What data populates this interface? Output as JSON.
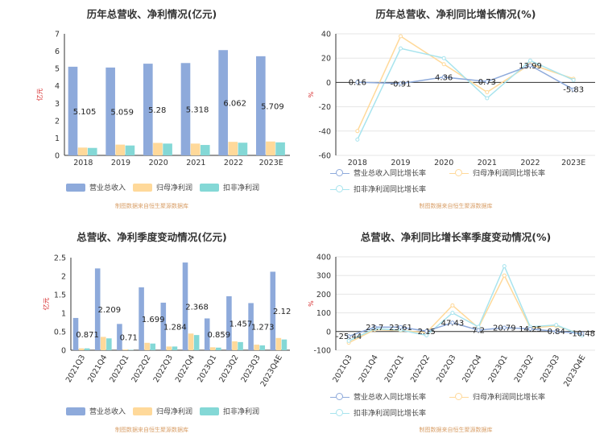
{
  "source_note": "制图数据来自恒生聚源数据库",
  "chart_data": [
    {
      "type": "bar",
      "title": "历年总营收、净利情况(亿元)",
      "ylabel": "亿元",
      "ylim": [
        0,
        7
      ],
      "yticks": [
        0,
        1,
        2,
        3,
        4,
        5,
        6,
        7
      ],
      "categories": [
        "2018",
        "2019",
        "2020",
        "2021",
        "2022",
        "2023E"
      ],
      "series": [
        {
          "name": "营业总收入",
          "color": "#8eaadb",
          "values": [
            5.105,
            5.059,
            5.28,
            5.318,
            6.062,
            5.709
          ]
        },
        {
          "name": "归母净利润",
          "color": "#ffd99a",
          "values": [
            0.45,
            0.62,
            0.72,
            0.68,
            0.78,
            0.8
          ]
        },
        {
          "name": "扣非净利润",
          "color": "#84d8d6",
          "values": [
            0.43,
            0.57,
            0.68,
            0.6,
            0.73,
            0.75
          ]
        }
      ],
      "data_labels": [
        "5.105",
        "5.059",
        "5.28",
        "5.318",
        "6.062",
        "5.709"
      ]
    },
    {
      "type": "line",
      "title": "历年总营收、净利同比增长情况(%)",
      "ylabel": "%",
      "ylim": [
        -60,
        40
      ],
      "yticks": [
        -60,
        -40,
        -20,
        0,
        20,
        40
      ],
      "categories": [
        "2018",
        "2019",
        "2020",
        "2021",
        "2022",
        "2023E"
      ],
      "series": [
        {
          "name": "营业总收入同比增长率",
          "color": "#8eaadb",
          "values": [
            0.16,
            -0.91,
            4.36,
            0.73,
            13.99,
            -5.83
          ]
        },
        {
          "name": "归母净利润同比增长率",
          "color": "#ffd99a",
          "values": [
            -40,
            38,
            15,
            -8,
            15,
            3
          ]
        },
        {
          "name": "扣非净利润同比增长率",
          "color": "#a8e4ee",
          "values": [
            -47,
            28,
            20,
            -13,
            18,
            2
          ]
        }
      ],
      "data_labels": [
        "0.16",
        "-0.91",
        "4.36",
        "0.73",
        "13.99",
        "-5.83"
      ]
    },
    {
      "type": "bar",
      "title": "总营收、净利季度变动情况(亿元)",
      "ylabel": "亿元",
      "ylim": [
        0,
        2.5
      ],
      "yticks": [
        0,
        0.5,
        1,
        1.5,
        2,
        2.5
      ],
      "categories": [
        "2021Q3",
        "2021Q4",
        "2022Q1",
        "2022Q2",
        "2022Q3",
        "2022Q4",
        "2023Q1",
        "2023Q2",
        "2023Q3",
        "2023Q4E"
      ],
      "series": [
        {
          "name": "营业总收入",
          "color": "#8eaadb",
          "values": [
            0.871,
            2.209,
            0.71,
            1.699,
            1.284,
            2.368,
            0.859,
            1.457,
            1.273,
            2.12
          ]
        },
        {
          "name": "归母净利润",
          "color": "#ffd99a",
          "values": [
            0.05,
            0.36,
            0.02,
            0.2,
            0.1,
            0.45,
            0.08,
            0.24,
            0.15,
            0.33
          ]
        },
        {
          "name": "扣非净利润",
          "color": "#84d8d6",
          "values": [
            0.05,
            0.32,
            0.01,
            0.18,
            0.1,
            0.41,
            0.07,
            0.22,
            0.13,
            0.29
          ]
        }
      ],
      "data_labels": [
        "0.871",
        "2.209",
        "0.71",
        "1.699",
        "1.284",
        "2.368",
        "0.859",
        "1.457",
        "1.273",
        "2.12"
      ]
    },
    {
      "type": "line",
      "title": "总营收、净利同比增长率季度变动情况(%)",
      "ylabel": "%",
      "ylim": [
        -100,
        400
      ],
      "yticks": [
        -100,
        0,
        100,
        200,
        300,
        400
      ],
      "categories": [
        "2021Q3",
        "2021Q4",
        "2022Q1",
        "2022Q2",
        "2022Q3",
        "2022Q4",
        "2023Q1",
        "2023Q2",
        "2023Q3",
        "2023Q4E"
      ],
      "series": [
        {
          "name": "营业总收入同比增长率",
          "color": "#8eaadb",
          "values": [
            -25.44,
            23.7,
            23.61,
            2.15,
            47.43,
            7.2,
            20.79,
            14.25,
            0.84,
            -10.48
          ]
        },
        {
          "name": "归母净利润同比增长率",
          "color": "#ffd99a",
          "values": [
            -60,
            10,
            5,
            -5,
            140,
            20,
            300,
            20,
            30,
            -15
          ]
        },
        {
          "name": "扣非净利润同比增长率",
          "color": "#a8e4ee",
          "values": [
            -50,
            15,
            8,
            -20,
            100,
            25,
            350,
            25,
            35,
            -20
          ]
        }
      ],
      "data_labels": [
        "-25.44",
        "23.7",
        "23.61",
        "2.15",
        "47.43",
        "7.2",
        "20.79",
        "14.25",
        "0.84",
        "-10.48"
      ]
    }
  ]
}
